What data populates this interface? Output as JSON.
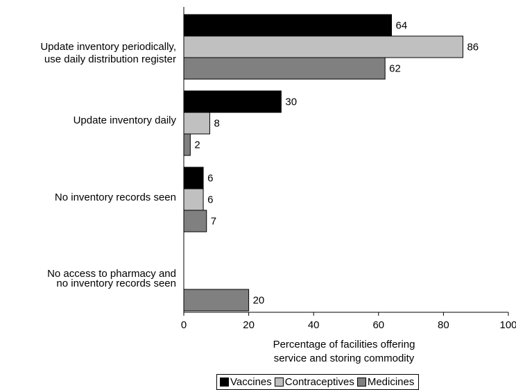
{
  "chart_data": {
    "type": "bar",
    "orientation": "horizontal",
    "categories": [
      "Update inventory periodically, use daily distribution register",
      "Update inventory daily",
      "No inventory records seen",
      "No access to pharmacy and no inventory records seen"
    ],
    "category_label_lines": [
      [
        "Update inventory periodically,",
        "use daily distribution register"
      ],
      [
        "Update inventory daily"
      ],
      [
        "No inventory records seen"
      ],
      [
        "No access to pharmacy and",
        "no inventory records seen"
      ]
    ],
    "series": [
      {
        "name": "Vaccines",
        "color": "#000000",
        "values": [
          64,
          30,
          6,
          null
        ]
      },
      {
        "name": "Contraceptives",
        "color": "#c0c0c0",
        "values": [
          86,
          8,
          6,
          null
        ]
      },
      {
        "name": "Medicines",
        "color": "#808080",
        "values": [
          62,
          2,
          7,
          20
        ]
      }
    ],
    "xlabel_lines": [
      "Percentage of facilities offering",
      "service and storing commodity"
    ],
    "xlim": [
      0,
      100
    ],
    "xticks": [
      0,
      20,
      40,
      60,
      80,
      100
    ],
    "grid": false,
    "legend_position": "bottom"
  }
}
